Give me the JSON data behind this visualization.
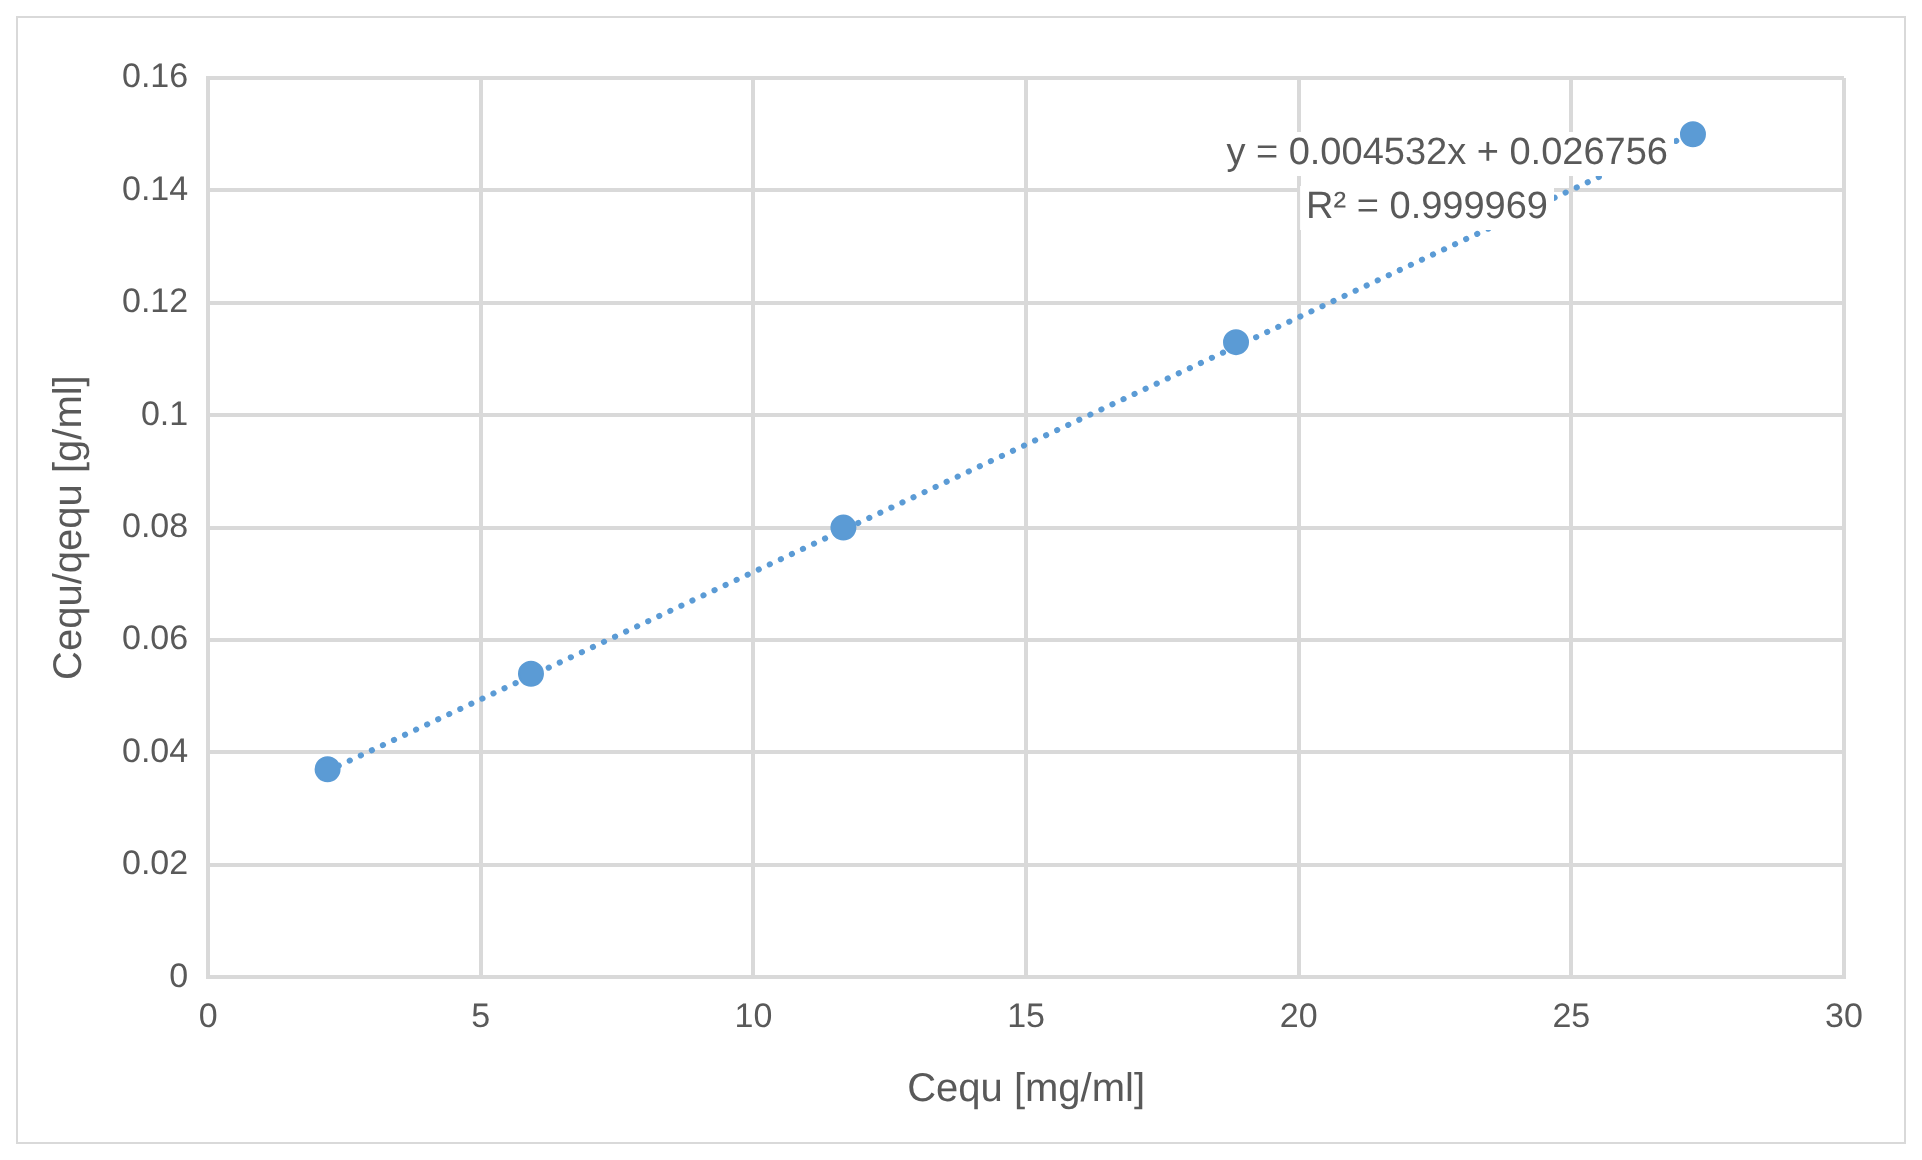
{
  "chart_data": {
    "type": "scatter",
    "xlabel": "Cequ [mg/ml]",
    "ylabel": "Cequ/qequ [g/ml]",
    "x": [
      2.19,
      5.92,
      11.65,
      18.85,
      27.23
    ],
    "series": [
      {
        "type": "scatter",
        "color": "#5b9bd5",
        "values": [
          0.037,
          0.054,
          0.08,
          0.113,
          0.15
        ],
        "marker": "circle"
      },
      {
        "type": "line",
        "color": "#5b9bd5",
        "x": [
          2.19,
          27.23
        ],
        "values": [
          0.0367,
          0.1502
        ],
        "line_style": "dotted",
        "marker": "none"
      }
    ],
    "xlim": [
      0,
      30
    ],
    "xticks": [
      0,
      5,
      10,
      15,
      20,
      25,
      30
    ],
    "ylim": [
      0,
      0.16
    ],
    "yticks": [
      0,
      0.02,
      0.04,
      0.06,
      0.08,
      0.1,
      0.12,
      0.14,
      0.16
    ],
    "grid": true,
    "legend": false,
    "annotations": [
      "y = 0.004532x + 0.026756",
      "R² = 0.999969"
    ]
  }
}
